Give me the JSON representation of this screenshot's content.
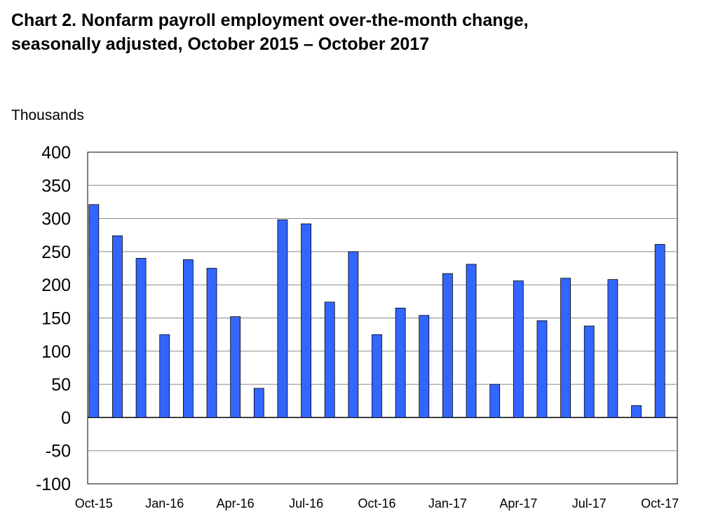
{
  "chart_data": {
    "type": "bar",
    "title_line1": "Chart 2. Nonfarm payroll employment over-the-month change,",
    "title_line2": "seasonally adjusted, October  2015 – October 2017",
    "ylabel": "Thousands",
    "xlabel": "",
    "ylim": [
      -100,
      400
    ],
    "yticks": [
      400,
      350,
      300,
      250,
      200,
      150,
      100,
      50,
      0,
      -50,
      -100
    ],
    "grid": true,
    "bar_color": "#3366FF",
    "categories": [
      "Oct-15",
      "Nov-15",
      "Dec-15",
      "Jan-16",
      "Feb-16",
      "Mar-16",
      "Apr-16",
      "May-16",
      "Jun-16",
      "Jul-16",
      "Aug-16",
      "Sep-16",
      "Oct-16",
      "Nov-16",
      "Dec-16",
      "Jan-17",
      "Feb-17",
      "Mar-17",
      "Apr-17",
      "May-17",
      "Jun-17",
      "Jul-17",
      "Aug-17",
      "Sep-17",
      "Oct-17"
    ],
    "xtick_labels": [
      "Oct-15",
      "Jan-16",
      "Apr-16",
      "Jul-16",
      "Oct-16",
      "Jan-17",
      "Apr-17",
      "Jul-17",
      "Oct-17"
    ],
    "values": [
      321,
      274,
      240,
      125,
      238,
      225,
      152,
      44,
      298,
      292,
      174,
      250,
      125,
      165,
      154,
      217,
      231,
      50,
      206,
      146,
      210,
      138,
      208,
      18,
      261
    ]
  }
}
